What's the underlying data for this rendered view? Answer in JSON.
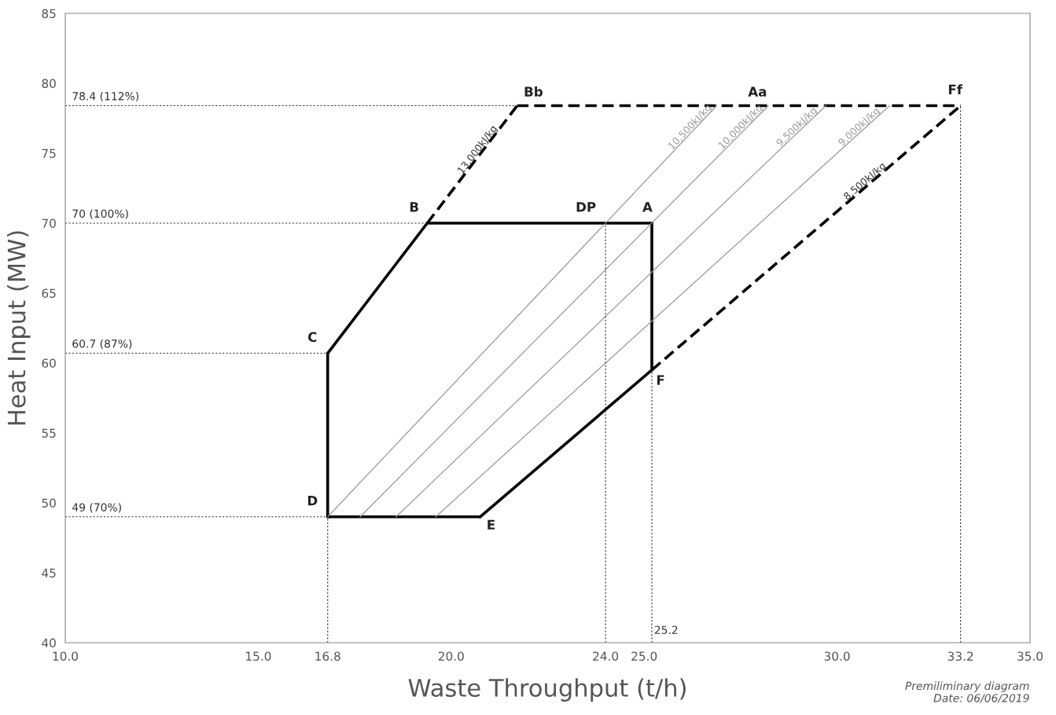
{
  "chart_data": {
    "type": "line",
    "xlabel": "Waste Throughput (t/h)",
    "ylabel": "Heat Input (MW)",
    "xlim": [
      10,
      35
    ],
    "ylim": [
      40,
      85
    ],
    "xticks": [
      {
        "value": 10,
        "label": "10.0"
      },
      {
        "value": 15,
        "label": "15.0"
      },
      {
        "value": 16.8,
        "label": "16.8"
      },
      {
        "value": 20,
        "label": "20.0"
      },
      {
        "value": 24,
        "label": "24.0"
      },
      {
        "value": 25,
        "label": "25.0"
      },
      {
        "value": 30,
        "label": "30.0"
      },
      {
        "value": 33.2,
        "label": "33.2"
      },
      {
        "value": 35,
        "label": "35.0"
      }
    ],
    "yticks": [
      40,
      45,
      50,
      55,
      60,
      65,
      70,
      75,
      80,
      85
    ],
    "grid": false,
    "legend": false,
    "marker": "none",
    "series": [
      {
        "color": "#000000",
        "line_style": "solid",
        "x": [
          16.8,
          19.38
        ],
        "values": [
          60.7,
          70
        ]
      },
      {
        "color": "#000000",
        "line_style": "solid",
        "x": [
          19.38,
          25.2
        ],
        "values": [
          70,
          70
        ]
      },
      {
        "color": "#000000",
        "line_style": "solid",
        "x": [
          25.2,
          25.2
        ],
        "values": [
          70,
          59.5
        ]
      },
      {
        "color": "#000000",
        "line_style": "solid",
        "x": [
          20.75,
          25.2
        ],
        "values": [
          49,
          59.5
        ]
      },
      {
        "color": "#000000",
        "line_style": "solid",
        "x": [
          16.8,
          20.75
        ],
        "values": [
          49,
          49
        ]
      },
      {
        "color": "#000000",
        "line_style": "solid",
        "x": [
          16.8,
          16.8
        ],
        "values": [
          49,
          60.7
        ]
      },
      {
        "name": "13,000kJ/kg",
        "color": "#000000",
        "line_style": "dashed",
        "x": [
          19.38,
          21.71
        ],
        "values": [
          70,
          78.4
        ]
      },
      {
        "color": "#000000",
        "line_style": "dashed",
        "x": [
          21.71,
          33.2
        ],
        "values": [
          78.4,
          78.4
        ]
      },
      {
        "name": "8,500kJ/kg",
        "color": "#000000",
        "line_style": "dashed",
        "x": [
          25.2,
          33.2
        ],
        "values": [
          59.5,
          78.4
        ]
      },
      {
        "name": "10,500kJ/kg",
        "color": "#9a9a9a",
        "line_style": "solid",
        "x": [
          16.8,
          26.88
        ],
        "values": [
          49,
          78.4
        ]
      },
      {
        "name": "10,000kJ/kg",
        "color": "#9a9a9a",
        "line_style": "solid",
        "x": [
          17.64,
          28.22
        ],
        "values": [
          49,
          78.4
        ]
      },
      {
        "name": "9,500kJ/kg",
        "color": "#9a9a9a",
        "line_style": "solid",
        "x": [
          18.57,
          29.71
        ],
        "values": [
          49,
          78.4
        ]
      },
      {
        "name": "9,000kJ/kg",
        "color": "#9a9a9a",
        "line_style": "solid",
        "x": [
          19.6,
          31.36
        ],
        "values": [
          49,
          78.4
        ]
      },
      {
        "color": "#333333",
        "line_style": "dotted",
        "x": [
          10,
          21.71
        ],
        "values": [
          78.4,
          78.4
        ]
      },
      {
        "color": "#333333",
        "line_style": "dotted",
        "x": [
          10,
          19.38
        ],
        "values": [
          70,
          70
        ]
      },
      {
        "color": "#333333",
        "line_style": "dotted",
        "x": [
          10,
          16.8
        ],
        "values": [
          60.7,
          60.7
        ]
      },
      {
        "color": "#333333",
        "line_style": "dotted",
        "x": [
          10,
          16.8
        ],
        "values": [
          49,
          49
        ]
      },
      {
        "color": "#333333",
        "line_style": "dotted",
        "x": [
          16.8,
          16.8
        ],
        "values": [
          40,
          49
        ]
      },
      {
        "color": "#333333",
        "line_style": "dotted",
        "x": [
          24,
          24
        ],
        "values": [
          40,
          70
        ]
      },
      {
        "color": "#333333",
        "line_style": "dotted",
        "x": [
          25.2,
          25.2
        ],
        "values": [
          40,
          59.5
        ]
      },
      {
        "color": "#333333",
        "line_style": "dotted",
        "x": [
          33.2,
          33.2
        ],
        "values": [
          40,
          78.4
        ]
      }
    ],
    "annotations": [
      {
        "text": "78.4 (112%)",
        "x": 10,
        "y": 78.4
      },
      {
        "text": "70 (100%)",
        "x": 10,
        "y": 70
      },
      {
        "text": "60.7 (87%)",
        "x": 10,
        "y": 60.7
      },
      {
        "text": "49 (70%)",
        "x": 10,
        "y": 49
      },
      {
        "text": "Bb",
        "x": 21.71,
        "y": 78.4
      },
      {
        "text": "Aa",
        "x": 28.22,
        "y": 78.4
      },
      {
        "text": "Ff",
        "x": 33.2,
        "y": 78.4
      },
      {
        "text": "B",
        "x": 19.38,
        "y": 70
      },
      {
        "text": "DP",
        "x": 24,
        "y": 70
      },
      {
        "text": "A",
        "x": 25.2,
        "y": 70
      },
      {
        "text": "C",
        "x": 16.8,
        "y": 60.7
      },
      {
        "text": "D",
        "x": 16.8,
        "y": 49
      },
      {
        "text": "E",
        "x": 20.75,
        "y": 49
      },
      {
        "text": "F",
        "x": 25.2,
        "y": 59.5
      },
      {
        "text": "25.2",
        "x": 25.2,
        "y": 40
      },
      "Premiliminary diagram\nDate: 06/06/2019"
    ]
  }
}
